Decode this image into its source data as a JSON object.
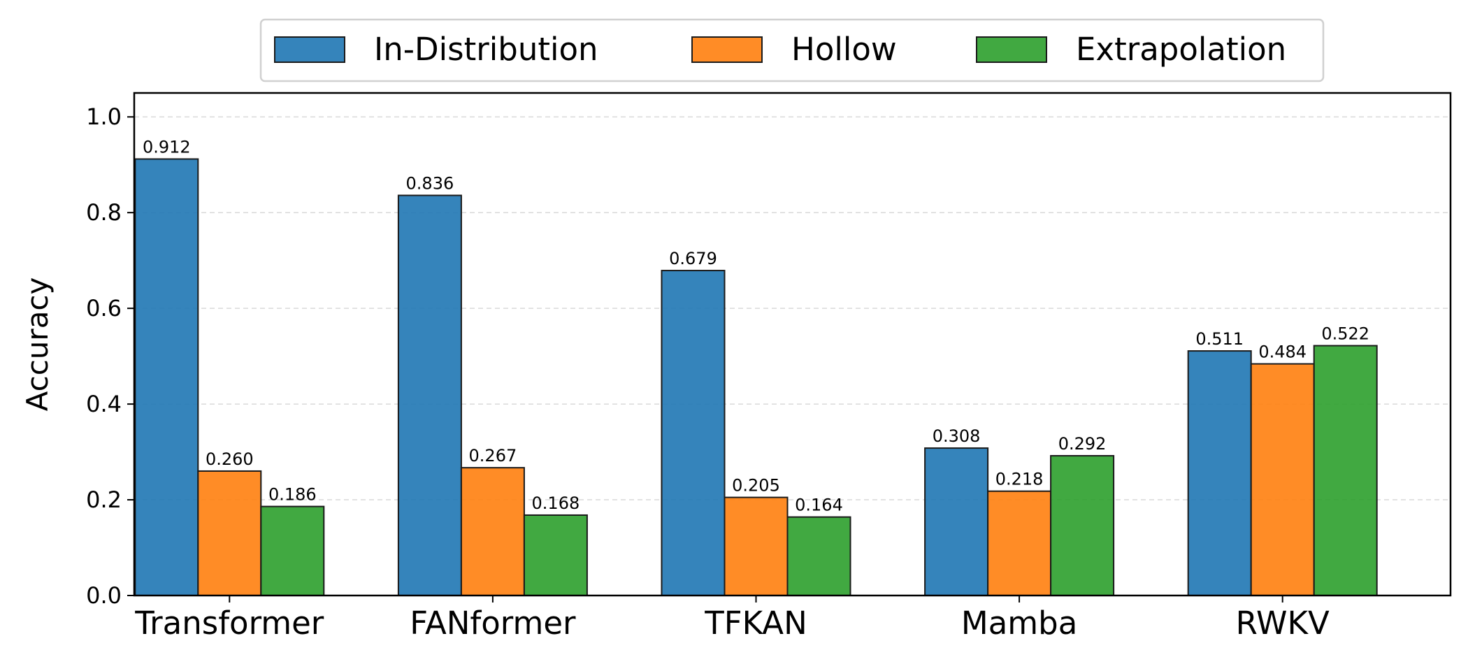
{
  "chart_data": {
    "type": "bar",
    "title": "",
    "xlabel": "",
    "ylabel": "Accuracy",
    "ylim": [
      0,
      1.05
    ],
    "yticks": [
      0.0,
      0.2,
      0.4,
      0.6,
      0.8,
      1.0
    ],
    "ytick_labels": [
      "0.0",
      "0.2",
      "0.4",
      "0.6",
      "0.8",
      "1.0"
    ],
    "grid": "y-dashed",
    "legend_position": "top-center",
    "categories": [
      "Transformer",
      "FANformer",
      "TFKAN",
      "Mamba",
      "RWKV"
    ],
    "series": [
      {
        "name": "In-Distribution",
        "color": "#1f77b4",
        "values": [
          0.912,
          0.836,
          0.679,
          0.308,
          0.511
        ],
        "labels": [
          "0.912",
          "0.836",
          "0.679",
          "0.308",
          "0.511"
        ]
      },
      {
        "name": "Hollow",
        "color": "#ff7f0e",
        "values": [
          0.26,
          0.267,
          0.205,
          0.218,
          0.484
        ],
        "labels": [
          "0.260",
          "0.267",
          "0.205",
          "0.218",
          "0.484"
        ]
      },
      {
        "name": "Extrapolation",
        "color": "#2ca02c",
        "values": [
          0.186,
          0.168,
          0.164,
          0.292,
          0.522
        ],
        "labels": [
          "0.186",
          "0.168",
          "0.164",
          "0.292",
          "0.522"
        ]
      }
    ]
  }
}
